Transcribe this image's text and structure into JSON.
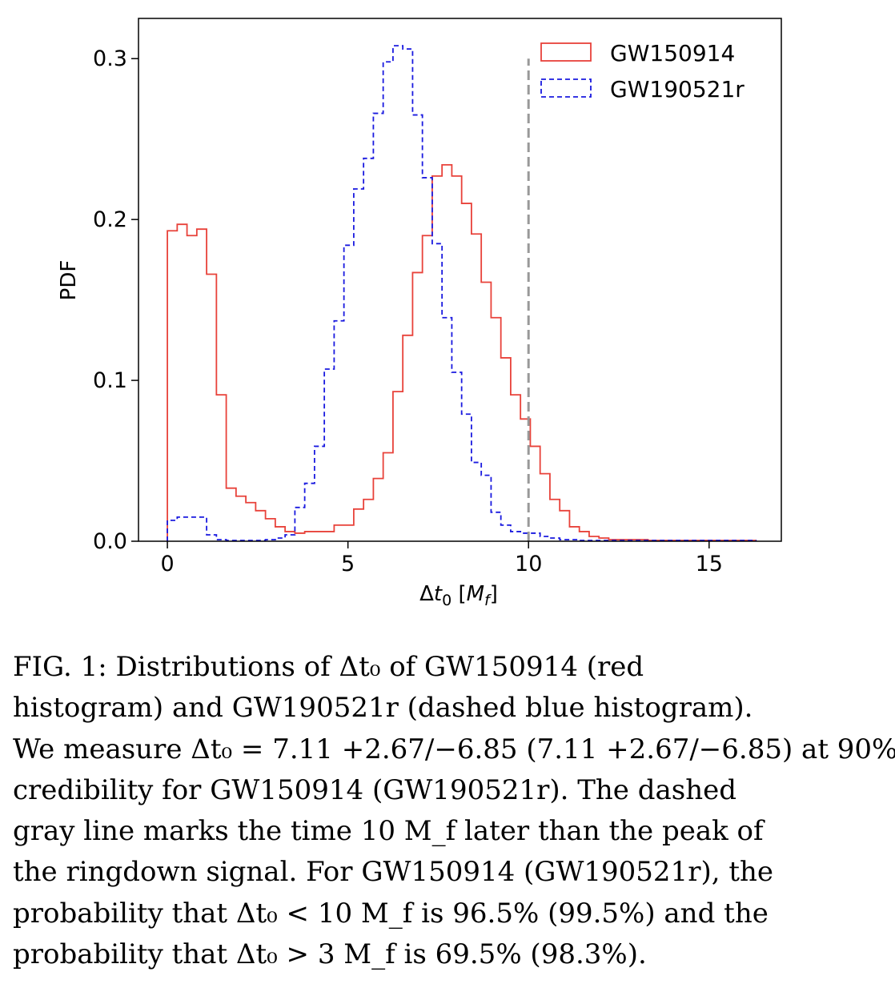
{
  "chart_data": {
    "type": "histogram",
    "xlabel": "Δt₀ [M_f]",
    "ylabel": "PDF",
    "xlim": [
      -0.8,
      17
    ],
    "ylim": [
      0,
      0.325
    ],
    "xticks": [
      0,
      5,
      10,
      15
    ],
    "xtick_labels": [
      "0",
      "5",
      "10",
      "15"
    ],
    "yticks": [
      0,
      0.1,
      0.2,
      0.3
    ],
    "ytick_labels": [
      "0.0",
      "0.1",
      "0.2",
      "0.3"
    ],
    "grid": false,
    "legend_position": "top-right",
    "bin_edges": [
      0.0,
      0.2716,
      0.5432,
      0.8148,
      1.0864,
      1.358,
      1.6296,
      1.9012,
      2.1728,
      2.4444,
      2.716,
      2.9876,
      3.2592,
      3.5308,
      3.8024,
      4.074,
      4.3456,
      4.6172,
      4.8888,
      5.1604,
      5.432,
      5.7036,
      5.9752,
      6.2468,
      6.5184,
      6.79,
      7.0616,
      7.3332,
      7.6048,
      7.8764,
      8.148,
      8.4196,
      8.6912,
      8.9628,
      9.2344,
      9.506,
      9.7776,
      10.0492,
      10.3208,
      10.5924,
      10.864,
      11.1356,
      11.4072,
      11.6788,
      11.9504,
      12.222,
      12.4936,
      12.7652,
      13.0368,
      13.3084,
      13.58,
      13.8516,
      14.1232,
      14.3948,
      14.6664,
      14.938,
      15.2096,
      15.4812,
      15.7528,
      16.0244,
      16.296
    ],
    "series": [
      {
        "name": "GW150914",
        "color": "#e8423a",
        "linestyle": "solid",
        "values": [
          0.193,
          0.197,
          0.19,
          0.194,
          0.166,
          0.091,
          0.033,
          0.028,
          0.024,
          0.019,
          0.014,
          0.009,
          0.006,
          0.005,
          0.006,
          0.006,
          0.006,
          0.01,
          0.01,
          0.02,
          0.026,
          0.039,
          0.055,
          0.093,
          0.128,
          0.167,
          0.19,
          0.227,
          0.234,
          0.227,
          0.21,
          0.191,
          0.161,
          0.139,
          0.114,
          0.091,
          0.076,
          0.059,
          0.042,
          0.026,
          0.019,
          0.009,
          0.006,
          0.003,
          0.002,
          0.001,
          0.001,
          0.001,
          0.001,
          0.0005,
          0.0005,
          0.0005,
          0.0005,
          0.0005,
          0.0005,
          0.0005,
          0.0005,
          0.0005,
          0.0005,
          0.0005
        ]
      },
      {
        "name": "GW190521r",
        "color": "#1a1adf",
        "linestyle": "dashed",
        "values": [
          0.013,
          0.015,
          0.015,
          0.015,
          0.004,
          0.001,
          0.0005,
          0.0005,
          0.0005,
          0.0005,
          0.001,
          0.002,
          0.004,
          0.021,
          0.036,
          0.059,
          0.107,
          0.137,
          0.184,
          0.219,
          0.238,
          0.266,
          0.298,
          0.308,
          0.306,
          0.265,
          0.226,
          0.185,
          0.139,
          0.105,
          0.079,
          0.049,
          0.041,
          0.018,
          0.01,
          0.006,
          0.005,
          0.005,
          0.003,
          0.002,
          0.001,
          0.001,
          0.0005,
          0.0005,
          0.0005,
          0.0005,
          0.0005,
          0.0005,
          0.0005,
          0.0005,
          0.0005,
          0.0005,
          0.0005,
          0.0005,
          0.0005,
          0.0005,
          0.0005,
          0.0005,
          0.0005,
          0.0005
        ]
      }
    ],
    "reference_line": {
      "x": 10,
      "y_top": 0.3,
      "color": "#999999",
      "linestyle": "dashed"
    }
  },
  "caption": {
    "lines": [
      "FIG. 1: Distributions of Δt₀ of GW150914 (red",
      "histogram) and GW190521r (dashed blue histogram).",
      "We measure Δt₀ = 7.11 +2.67/−6.85 (7.11 +2.67/−6.85) at 90%",
      "credibility for GW150914 (GW190521r). The dashed",
      "gray line marks the time 10 M_f later than the peak of",
      "the ringdown signal. For GW150914 (GW190521r), the",
      "probability that Δt₀ < 10 M_f is 96.5% (99.5%) and the",
      "probability that Δt₀ > 3 M_f is 69.5% (98.3%)."
    ]
  }
}
